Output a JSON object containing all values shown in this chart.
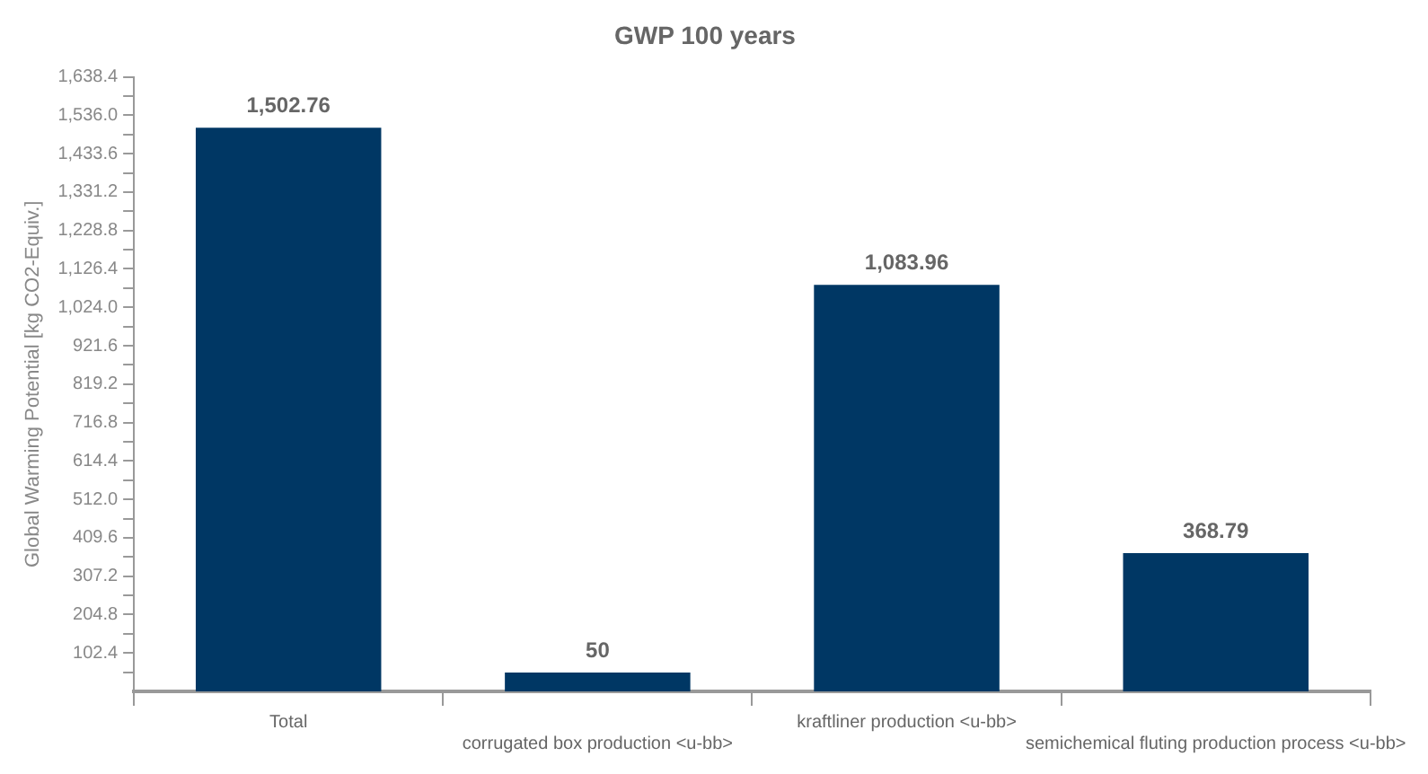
{
  "chart_data": {
    "type": "bar",
    "title": "GWP 100 years",
    "ylabel": "Global Warming Potential [kg CO2-Equiv.]",
    "categories": [
      "Total",
      "corrugated box production <u-bb>",
      "kraftliner production <u-bb>",
      "semichemical fluting production process <u-bb>"
    ],
    "values": [
      1502.76,
      50,
      1083.96,
      368.79
    ],
    "value_labels": [
      "1,502.76",
      "50",
      "1,083.96",
      "368.79"
    ],
    "color": "#003764",
    "ylim": [
      0,
      1638.4
    ],
    "yticks": [
      {
        "value": 51.2,
        "label": null
      },
      {
        "value": 102.4,
        "label": "102.4"
      },
      {
        "value": 153.6,
        "label": null
      },
      {
        "value": 204.8,
        "label": "204.8"
      },
      {
        "value": 256,
        "label": null
      },
      {
        "value": 307.2,
        "label": "307.2"
      },
      {
        "value": 358.4,
        "label": null
      },
      {
        "value": 409.6,
        "label": "409.6"
      },
      {
        "value": 460.8,
        "label": null
      },
      {
        "value": 512,
        "label": "512.0"
      },
      {
        "value": 563.2,
        "label": null
      },
      {
        "value": 614.4,
        "label": "614.4"
      },
      {
        "value": 665.6,
        "label": null
      },
      {
        "value": 716.8,
        "label": "716.8"
      },
      {
        "value": 768,
        "label": null
      },
      {
        "value": 819.2,
        "label": "819.2"
      },
      {
        "value": 870.4,
        "label": null
      },
      {
        "value": 921.6,
        "label": "921.6"
      },
      {
        "value": 972.8,
        "label": null
      },
      {
        "value": 1024,
        "label": "1,024.0"
      },
      {
        "value": 1075.2,
        "label": null
      },
      {
        "value": 1126.4,
        "label": "1,126.4"
      },
      {
        "value": 1177.6,
        "label": null
      },
      {
        "value": 1228.8,
        "label": "1,228.8"
      },
      {
        "value": 1280,
        "label": null
      },
      {
        "value": 1331.2,
        "label": "1,331.2"
      },
      {
        "value": 1382.4,
        "label": null
      },
      {
        "value": 1433.6,
        "label": "1,433.6"
      },
      {
        "value": 1484.8,
        "label": null
      },
      {
        "value": 1536,
        "label": "1,536.0"
      },
      {
        "value": 1587.2,
        "label": null
      },
      {
        "value": 1638.4,
        "label": "1,638.4"
      }
    ],
    "grid": false,
    "legend": false
  }
}
